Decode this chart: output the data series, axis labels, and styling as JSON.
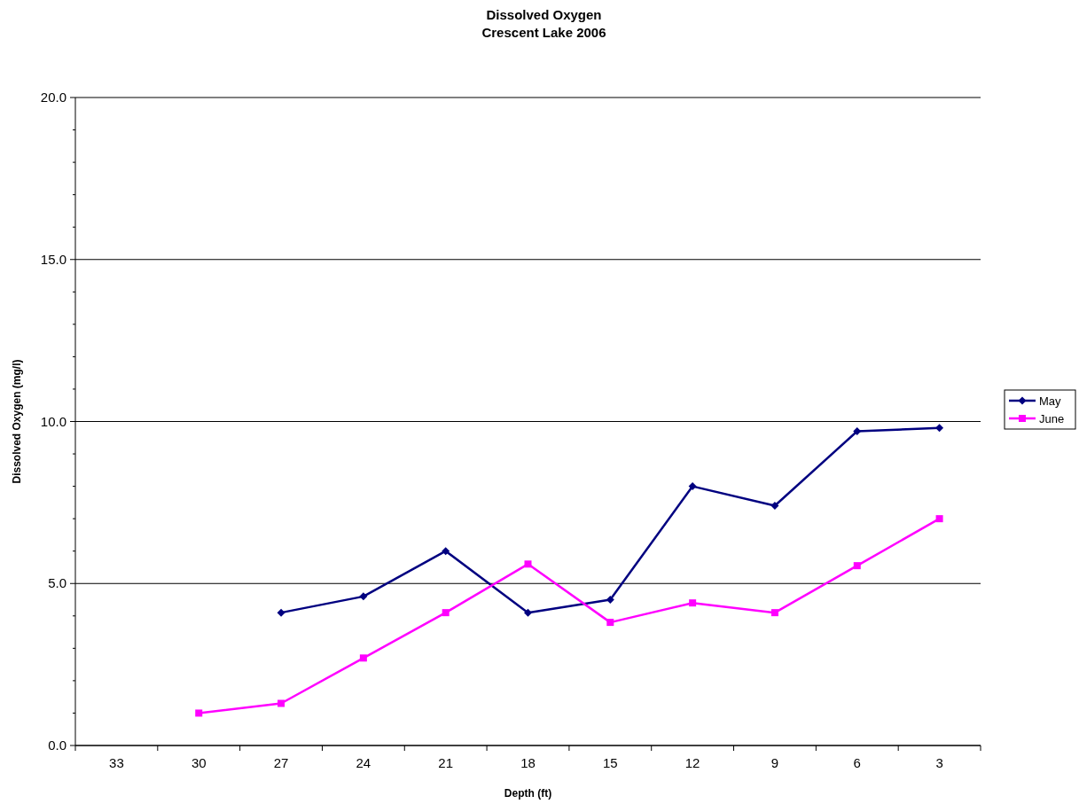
{
  "chart_data": {
    "type": "line",
    "title": "Dissolved Oxygen\nCrescent Lake 2006",
    "xlabel": "Depth (ft)",
    "ylabel": "Dissolved Oxygen (mg/l)",
    "categories": [
      "33",
      "30",
      "27",
      "24",
      "21",
      "18",
      "15",
      "12",
      "9",
      "6",
      "3"
    ],
    "series": [
      {
        "name": "May",
        "color": "#000080",
        "marker": "diamond",
        "values": [
          null,
          null,
          4.1,
          4.6,
          6.0,
          4.1,
          4.5,
          8.0,
          7.4,
          9.7,
          9.8
        ]
      },
      {
        "name": "June",
        "color": "#ff00ff",
        "marker": "square",
        "values": [
          null,
          1.0,
          1.3,
          2.7,
          4.1,
          5.6,
          3.8,
          4.4,
          4.1,
          5.55,
          7.0
        ]
      }
    ],
    "ylim": [
      0,
      20
    ],
    "yticks": [
      {
        "value": 0,
        "label": "0.0"
      },
      {
        "value": 1,
        "label": null
      },
      {
        "value": 2,
        "label": null
      },
      {
        "value": 3,
        "label": null
      },
      {
        "value": 4,
        "label": null
      },
      {
        "value": 5,
        "label": "5.0"
      },
      {
        "value": 6,
        "label": null
      },
      {
        "value": 7,
        "label": null
      },
      {
        "value": 8,
        "label": null
      },
      {
        "value": 9,
        "label": null
      },
      {
        "value": 10,
        "label": "10.0"
      },
      {
        "value": 11,
        "label": null
      },
      {
        "value": 12,
        "label": null
      },
      {
        "value": 13,
        "label": null
      },
      {
        "value": 14,
        "label": null
      },
      {
        "value": 15,
        "label": "15.0"
      },
      {
        "value": 16,
        "label": null
      },
      {
        "value": 17,
        "label": null
      },
      {
        "value": 18,
        "label": null
      },
      {
        "value": 19,
        "label": null
      },
      {
        "value": 20,
        "label": "20.0"
      }
    ],
    "grid": "y",
    "legend": "right",
    "line_style": "solid"
  }
}
